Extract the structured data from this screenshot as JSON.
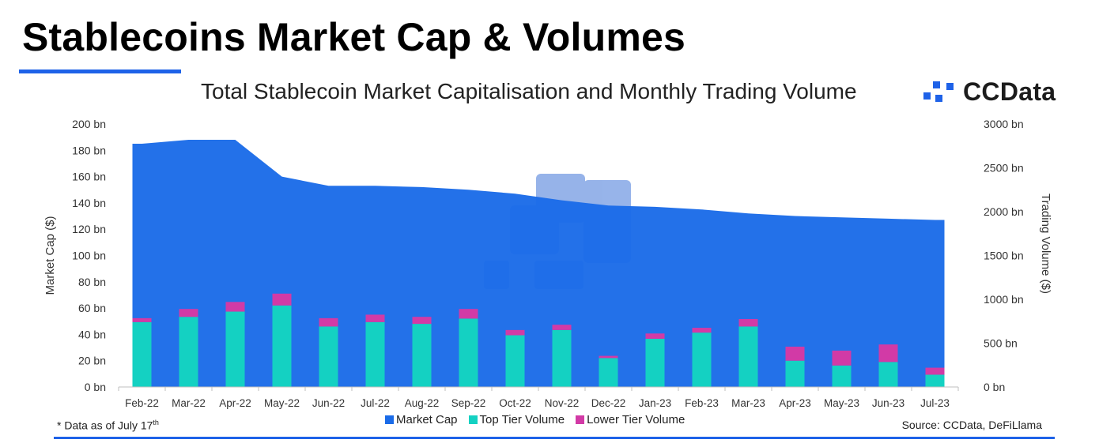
{
  "page": {
    "title": "Stablecoins Market Cap & Volumes",
    "footnote": "* Data as of July 17",
    "footnote_sup": "th",
    "source": "Source: CCData, DeFiLlama",
    "brand": "CCData"
  },
  "colors": {
    "accent": "#1e62e8",
    "market_cap": "#1a6be8",
    "top_tier": "#14d1c2",
    "lower_tier": "#d23aa6",
    "watermark": "#1858d0"
  },
  "chart_data": {
    "type": "bar",
    "title": "Total Stablecoin Market Capitalisation and Monthly Trading Volume",
    "categories": [
      "Feb-22",
      "Mar-22",
      "Apr-22",
      "May-22",
      "Jun-22",
      "Jul-22",
      "Aug-22",
      "Sep-22",
      "Oct-22",
      "Nov-22",
      "Dec-22",
      "Jan-23",
      "Feb-23",
      "Mar-23",
      "Apr-23",
      "May-23",
      "Jun-23",
      "Jul-23"
    ],
    "ylabel": "Market Cap ($)",
    "y2label": "Trading Volume ($)",
    "ylim": [
      0,
      200
    ],
    "y2lim": [
      0,
      3000
    ],
    "yticks": [
      "0 bn",
      "20 bn",
      "40 bn",
      "60 bn",
      "80 bn",
      "100 bn",
      "120 bn",
      "140 bn",
      "160 bn",
      "180 bn",
      "200 bn"
    ],
    "y2ticks": [
      "0 bn",
      "500 bn",
      "1000 bn",
      "1500 bn",
      "2000 bn",
      "2500 bn",
      "3000 bn"
    ],
    "series": [
      {
        "name": "Market Cap",
        "type": "area",
        "axis": "left",
        "unit": "bn",
        "values": [
          185,
          188,
          188,
          160,
          153,
          153,
          152,
          150,
          147,
          142,
          138,
          137,
          135,
          132,
          130,
          129,
          128,
          127
        ]
      },
      {
        "name": "Top Tier Volume",
        "type": "bar",
        "axis": "right",
        "unit": "bn",
        "stack": "vol",
        "values": [
          740,
          800,
          860,
          930,
          690,
          740,
          720,
          780,
          590,
          650,
          330,
          550,
          620,
          690,
          300,
          245,
          285,
          140
        ]
      },
      {
        "name": "Lower Tier Volume",
        "type": "bar",
        "axis": "right",
        "unit": "bn",
        "stack": "vol",
        "values": [
          45,
          90,
          110,
          135,
          95,
          85,
          80,
          110,
          60,
          60,
          25,
          60,
          55,
          85,
          160,
          170,
          200,
          80
        ]
      }
    ],
    "legend": [
      "Market Cap",
      "Top Tier Volume",
      "Lower Tier Volume"
    ],
    "legend_position": "bottom-center"
  }
}
